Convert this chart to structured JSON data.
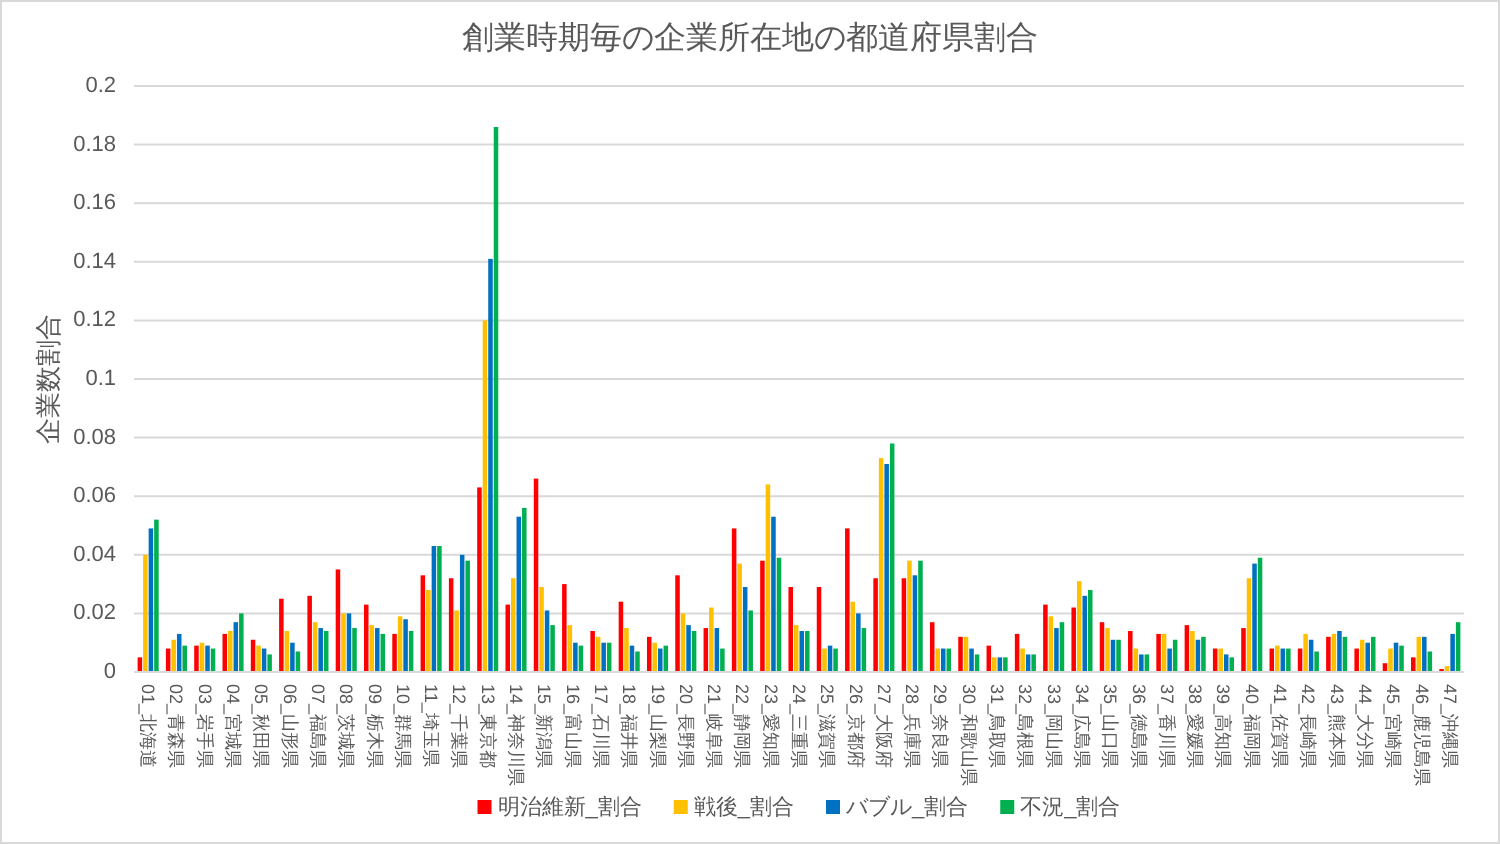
{
  "chart_data": {
    "type": "bar",
    "title": "創業時期毎の企業所在地の都道府県割合",
    "ylabel": "企業数割合",
    "categories": [
      "01_北海道",
      "02_青森県",
      "03_岩手県",
      "04_宮城県",
      "05_秋田県",
      "06_山形県",
      "07_福島県",
      "08_茨城県",
      "09_栃木県",
      "10_群馬県",
      "11_埼玉県",
      "12_千葉県",
      "13_東京都",
      "14_神奈川県",
      "15_新潟県",
      "16_富山県",
      "17_石川県",
      "18_福井県",
      "19_山梨県",
      "20_長野県",
      "21_岐阜県",
      "22_静岡県",
      "23_愛知県",
      "24_三重県",
      "25_滋賀県",
      "26_京都府",
      "27_大阪府",
      "28_兵庫県",
      "29_奈良県",
      "30_和歌山県",
      "31_鳥取県",
      "32_島根県",
      "33_岡山県",
      "34_広島県",
      "35_山口県",
      "36_徳島県",
      "37_香川県",
      "38_愛媛県",
      "39_高知県",
      "40_福岡県",
      "41_佐賀県",
      "42_長崎県",
      "43_熊本県",
      "44_大分県",
      "45_宮崎県",
      "46_鹿児島県",
      "47_沖縄県"
    ],
    "series": [
      {
        "name": "明治維新_割合",
        "color": "#ff0000",
        "values": [
          0.005,
          0.008,
          0.009,
          0.013,
          0.011,
          0.025,
          0.026,
          0.035,
          0.023,
          0.013,
          0.033,
          0.032,
          0.063,
          0.023,
          0.066,
          0.03,
          0.014,
          0.024,
          0.012,
          0.033,
          0.015,
          0.049,
          0.038,
          0.029,
          0.029,
          0.049,
          0.032,
          0.032,
          0.017,
          0.012,
          0.009,
          0.013,
          0.023,
          0.022,
          0.017,
          0.014,
          0.013,
          0.016,
          0.008,
          0.015,
          0.008,
          0.008,
          0.012,
          0.008,
          0.003,
          0.005,
          0.001
        ]
      },
      {
        "name": "戦後_割合",
        "color": "#ffc000",
        "values": [
          0.04,
          0.011,
          0.01,
          0.014,
          0.009,
          0.014,
          0.017,
          0.02,
          0.016,
          0.019,
          0.028,
          0.021,
          0.12,
          0.032,
          0.029,
          0.016,
          0.012,
          0.015,
          0.01,
          0.02,
          0.022,
          0.037,
          0.064,
          0.016,
          0.008,
          0.024,
          0.073,
          0.038,
          0.008,
          0.012,
          0.005,
          0.008,
          0.019,
          0.031,
          0.015,
          0.008,
          0.013,
          0.014,
          0.008,
          0.032,
          0.009,
          0.013,
          0.013,
          0.011,
          0.008,
          0.012,
          0.002
        ]
      },
      {
        "name": "バブル_割合",
        "color": "#0070c0",
        "values": [
          0.049,
          0.013,
          0.009,
          0.017,
          0.008,
          0.01,
          0.015,
          0.02,
          0.015,
          0.018,
          0.043,
          0.04,
          0.141,
          0.053,
          0.021,
          0.01,
          0.01,
          0.009,
          0.008,
          0.016,
          0.015,
          0.029,
          0.053,
          0.014,
          0.009,
          0.02,
          0.071,
          0.033,
          0.008,
          0.008,
          0.005,
          0.006,
          0.015,
          0.026,
          0.011,
          0.006,
          0.008,
          0.011,
          0.006,
          0.037,
          0.008,
          0.011,
          0.014,
          0.01,
          0.01,
          0.012,
          0.013
        ]
      },
      {
        "name": "不況_割合",
        "color": "#00b050",
        "values": [
          0.052,
          0.009,
          0.008,
          0.02,
          0.006,
          0.007,
          0.014,
          0.015,
          0.013,
          0.014,
          0.043,
          0.038,
          0.186,
          0.056,
          0.016,
          0.009,
          0.01,
          0.007,
          0.009,
          0.014,
          0.008,
          0.021,
          0.039,
          0.014,
          0.008,
          0.015,
          0.078,
          0.038,
          0.008,
          0.006,
          0.005,
          0.006,
          0.017,
          0.028,
          0.011,
          0.006,
          0.011,
          0.012,
          0.005,
          0.039,
          0.008,
          0.007,
          0.012,
          0.012,
          0.009,
          0.007,
          0.017
        ]
      }
    ],
    "ylim": [
      0,
      0.2
    ],
    "yticks": [
      0,
      0.02,
      0.04,
      0.06,
      0.08,
      0.1,
      0.12,
      0.14,
      0.16,
      0.18,
      0.2
    ],
    "grid": "y",
    "legend": "bottom"
  }
}
